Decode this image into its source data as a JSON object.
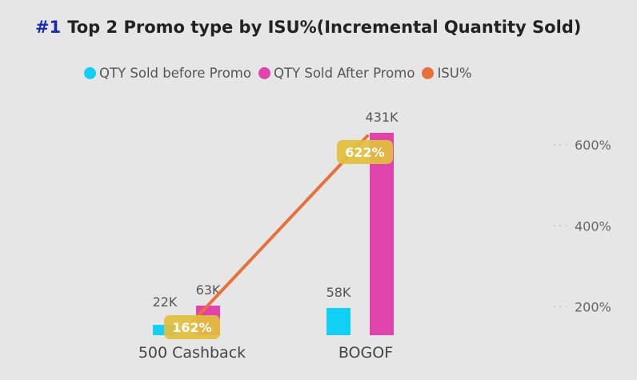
{
  "header": {
    "number": "#1",
    "title": "Top 2 Promo type by ISU%(Incremental Quantity Sold)"
  },
  "colors": {
    "before": "#12cff5",
    "after": "#e043ac",
    "isu": "#e8703a",
    "label_bg": "#e2bf3c"
  },
  "chart_data": {
    "type": "bar",
    "title": "Top 2 Promo type by ISU%(Incremental Quantity Sold)",
    "categories": [
      "500 Cashback",
      "BOGOF"
    ],
    "series": [
      {
        "name": "QTY Sold before Promo",
        "kind": "bar",
        "values": [
          22000,
          58000
        ],
        "labels": [
          "22K",
          "58K"
        ]
      },
      {
        "name": "QTY Sold After Promo",
        "kind": "bar",
        "values": [
          63000,
          431000
        ],
        "labels": [
          "63K",
          "431K"
        ]
      },
      {
        "name": "ISU%",
        "kind": "line",
        "axis": "right",
        "values": [
          162,
          622
        ],
        "labels": [
          "162%",
          "622%"
        ]
      }
    ],
    "right_axis": {
      "ticks": [
        200,
        400,
        600
      ],
      "tick_labels": [
        "200%",
        "400%",
        "600%"
      ],
      "range": [
        130,
        630
      ]
    },
    "left_axis_range": [
      0,
      431000
    ],
    "legend_position": "top"
  }
}
